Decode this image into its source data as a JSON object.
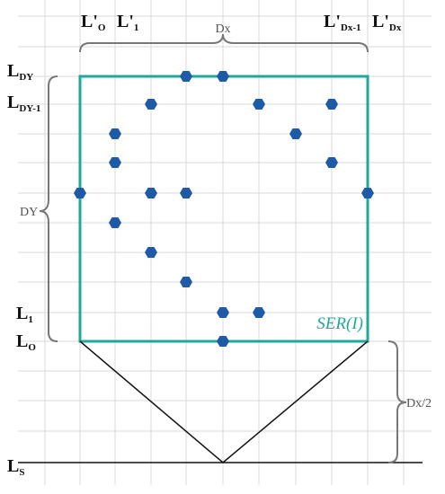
{
  "top_labels": [
    {
      "symbol": "L'",
      "subscript": "O"
    },
    {
      "symbol": "L'",
      "subscript": "1"
    },
    {
      "symbol": "L'",
      "subscript": "Dx-1"
    },
    {
      "symbol": "L'",
      "subscript": "Dx"
    }
  ],
  "width_label": "Dx",
  "left_labels": [
    {
      "symbol": "L",
      "subscript": "DY"
    },
    {
      "symbol": "L",
      "subscript": "DY-1"
    },
    {
      "symbol": "L",
      "subscript": "1"
    },
    {
      "symbol": "L",
      "subscript": "O"
    },
    {
      "symbol": "L",
      "subscript": "S"
    }
  ],
  "height_label": "DY",
  "half_label": "Dx/2",
  "region_label": "SER(I)"
}
